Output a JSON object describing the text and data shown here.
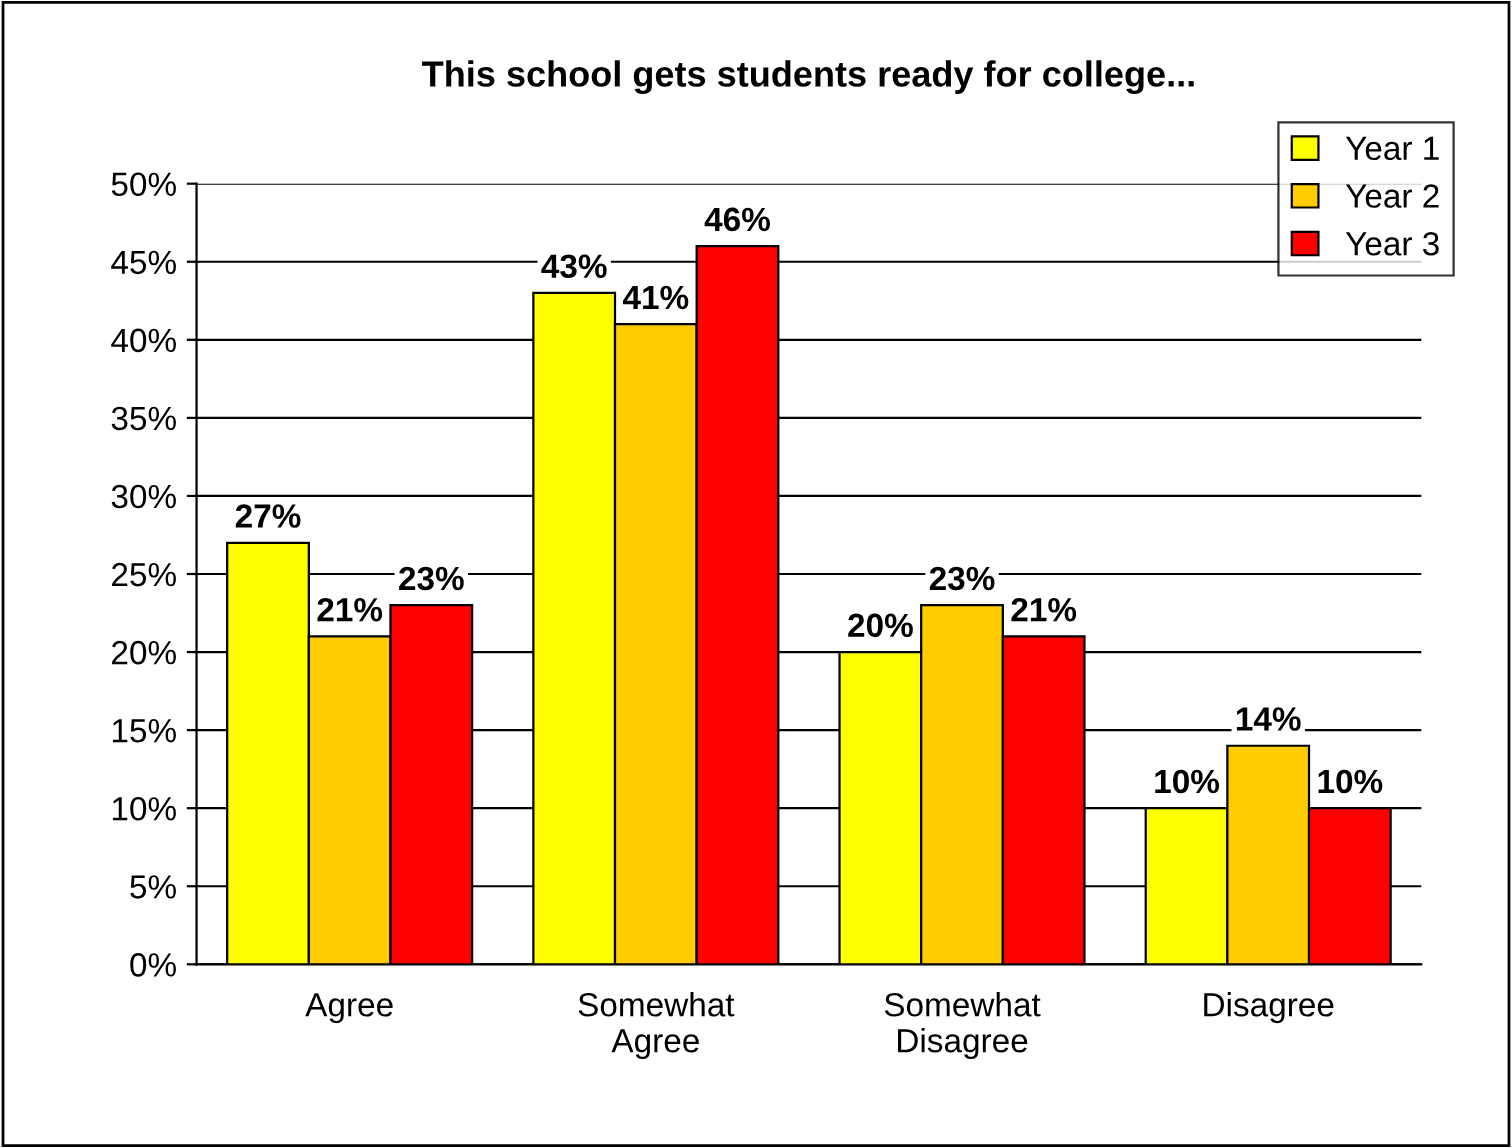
{
  "chart_data": {
    "type": "bar",
    "title": "This school gets students ready for college...",
    "categories": [
      "Agree",
      "Somewhat\nAgree",
      "Somewhat\nDisagree",
      "Disagree"
    ],
    "series": [
      {
        "name": "Year 1",
        "color": "#ffff00",
        "values": [
          27,
          43,
          20,
          10
        ],
        "value_labels": [
          "27%",
          "43%",
          "20%",
          "10%"
        ]
      },
      {
        "name": "Year 2",
        "color": "#ffcc00",
        "values": [
          21,
          41,
          23,
          14
        ],
        "value_labels": [
          "21%",
          "41%",
          "23%",
          "14%"
        ]
      },
      {
        "name": "Year 3",
        "color": "#ff0000",
        "values": [
          23,
          46,
          21,
          10
        ],
        "value_labels": [
          "23%",
          "46%",
          "21%",
          "10%"
        ]
      }
    ],
    "ylim": [
      0,
      50
    ],
    "yticks": [
      {
        "value": 0,
        "label": "0%"
      },
      {
        "value": 5,
        "label": "5%"
      },
      {
        "value": 10,
        "label": "10%"
      },
      {
        "value": 15,
        "label": "15%"
      },
      {
        "value": 20,
        "label": "20%"
      },
      {
        "value": 25,
        "label": "25%"
      },
      {
        "value": 30,
        "label": "30%"
      },
      {
        "value": 35,
        "label": "35%"
      },
      {
        "value": 40,
        "label": "40%"
      },
      {
        "value": 45,
        "label": "45%"
      },
      {
        "value": 50,
        "label": "50%"
      }
    ],
    "grid": "y",
    "legend": "top right"
  }
}
